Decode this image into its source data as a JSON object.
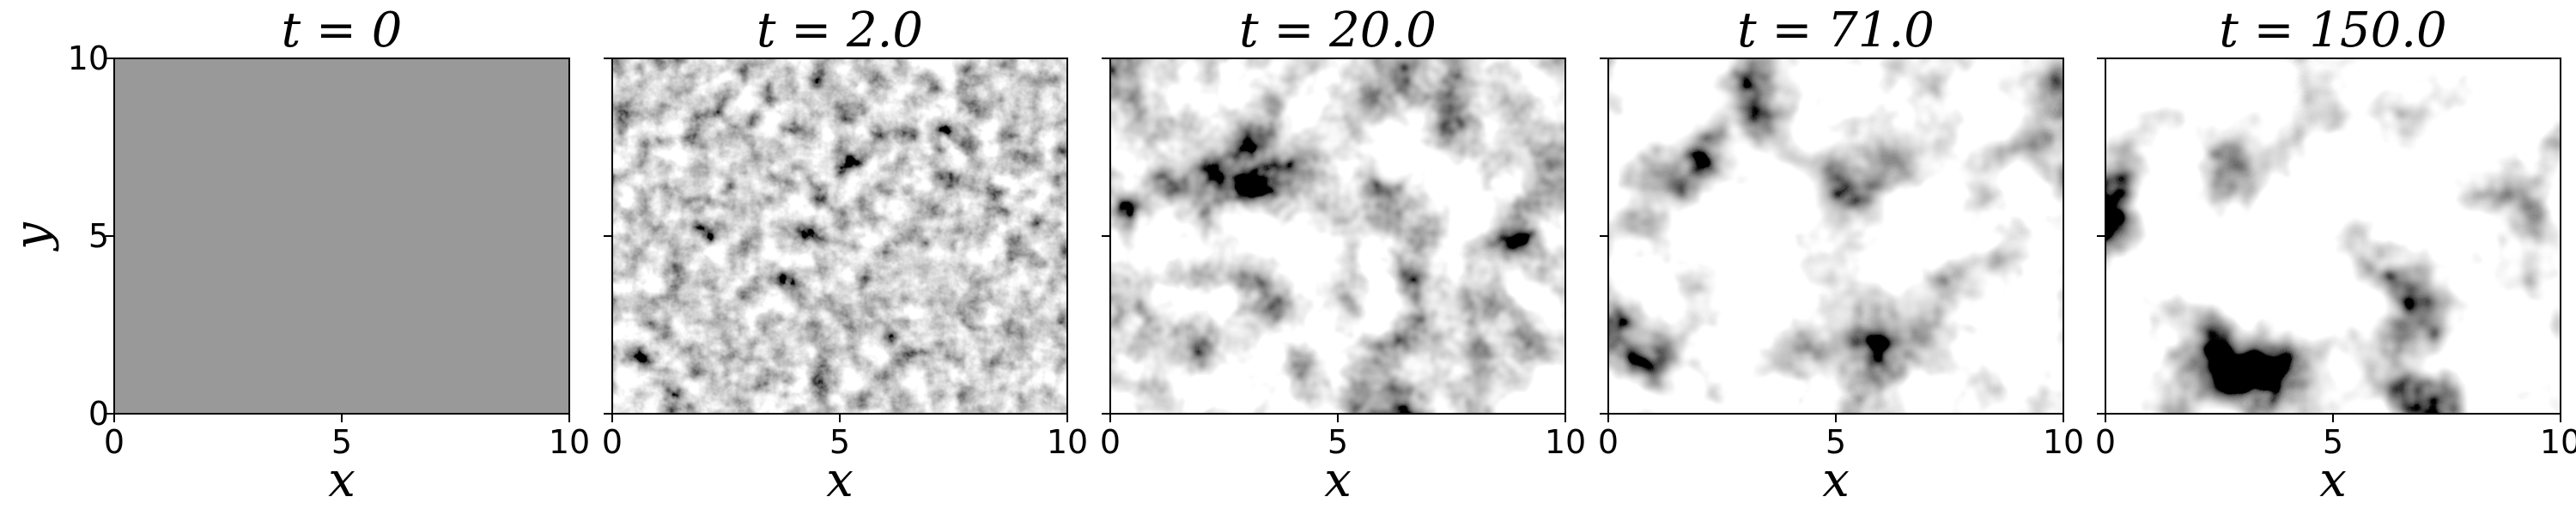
{
  "chart_data": {
    "type": "heatmap",
    "colormap": "grayscale",
    "xlabel": "x",
    "ylabel": "y",
    "xlim": [
      0,
      10
    ],
    "ylim": [
      0,
      10
    ],
    "xticks": [
      "0",
      "5",
      "10"
    ],
    "yticks": [
      "0",
      "5",
      "10"
    ],
    "grid": false,
    "panels": [
      {
        "title": "t = 0",
        "t": 0,
        "pattern": "uniform"
      },
      {
        "title": "t = 2.0",
        "t": 2.0,
        "pattern": "fine-noise"
      },
      {
        "title": "t = 20.0",
        "t": 20.0,
        "pattern": "patches"
      },
      {
        "title": "t = 71.0",
        "t": 71.0,
        "pattern": "patches"
      },
      {
        "title": "t = 150.0",
        "t": 150.0,
        "pattern": "patches"
      }
    ]
  }
}
